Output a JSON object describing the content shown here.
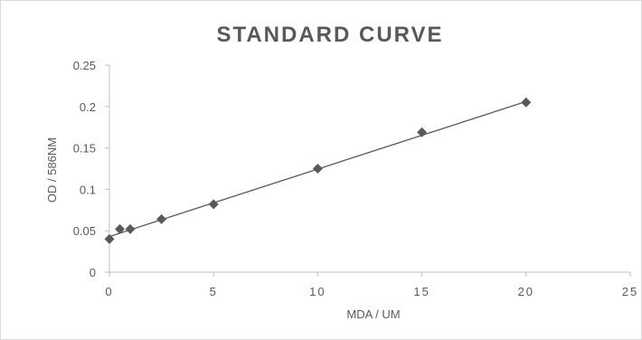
{
  "chart_data": {
    "type": "scatter",
    "title": "STANDARD CURVE",
    "xlabel": "MDA / UM",
    "ylabel": "OD / 586NM",
    "xlim": [
      0,
      25
    ],
    "ylim": [
      0,
      0.25
    ],
    "x_ticks": [
      "0",
      "5",
      "10",
      "15",
      "20",
      "25"
    ],
    "y_ticks": [
      "0",
      "0.05",
      "0.1",
      "0.15",
      "0.2",
      "0.25"
    ],
    "grid": false,
    "legend": "none",
    "marker": "diamond",
    "marker_color": "#595959",
    "line_color": "#595959",
    "trendline": {
      "type": "linear",
      "x": [
        0,
        20
      ],
      "y": [
        0.043,
        0.206
      ]
    },
    "series": [
      {
        "x": [
          0,
          0.5,
          1,
          2.5,
          5,
          10,
          15,
          20
        ],
        "y": [
          0.04,
          0.052,
          0.052,
          0.064,
          0.082,
          0.125,
          0.169,
          0.205
        ]
      }
    ]
  }
}
